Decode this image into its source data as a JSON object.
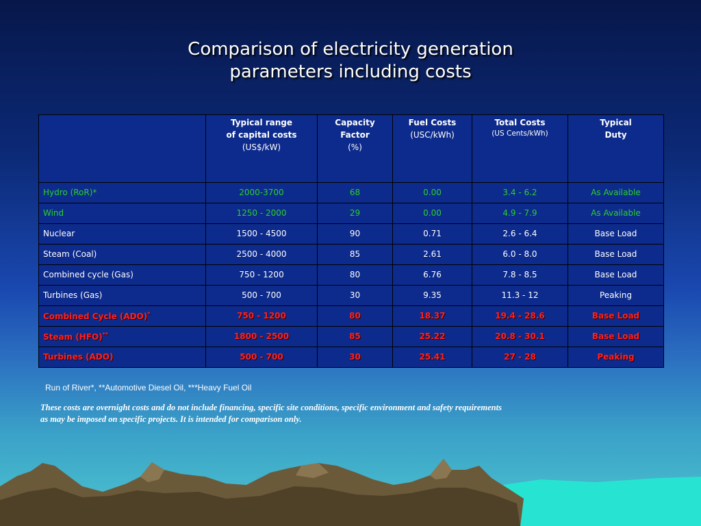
{
  "title": {
    "line1": "Comparison of electricity generation",
    "line2": "parameters including costs"
  },
  "table": {
    "headers": [
      {
        "main": "",
        "sub": ""
      },
      {
        "main": "Typical range\nof capital costs",
        "sub": "(US$/kW)"
      },
      {
        "main": "Capacity\nFactor",
        "sub": "(%)"
      },
      {
        "main": "Fuel Costs",
        "sub": "(USC/kWh)"
      },
      {
        "main": "Total Costs",
        "sub": "(US Cents/kWh)"
      },
      {
        "main": "Typical\nDuty",
        "sub": ""
      }
    ],
    "rows": [
      {
        "style": "green",
        "cells": [
          "Hydro (RoR)*",
          "2000-3700",
          "68",
          "0.00",
          "3.4 - 6.2",
          "As Available"
        ]
      },
      {
        "style": "green",
        "cells": [
          "Wind",
          "1250 - 2000",
          "29",
          "0.00",
          "4.9 - 7.9",
          "As Available"
        ]
      },
      {
        "style": "normal",
        "cells": [
          "Nuclear",
          "1500 - 4500",
          "90",
          "0.71",
          "2.6 - 6.4",
          "Base Load"
        ]
      },
      {
        "style": "normal",
        "cells": [
          "Steam (Coal)",
          "2500 - 4000",
          "85",
          "2.61",
          "6.0 - 8.0",
          "Base Load"
        ]
      },
      {
        "style": "normal",
        "cells": [
          "Combined cycle (Gas)",
          "750 - 1200",
          "80",
          "6.76",
          "7.8 - 8.5",
          "Base Load"
        ]
      },
      {
        "style": "normal",
        "cells": [
          "Turbines (Gas)",
          "500 - 700",
          "30",
          "9.35",
          "11.3 - 12",
          "Peaking"
        ]
      },
      {
        "style": "red",
        "sup": "*",
        "cells": [
          "Combined Cycle (ADO)",
          "750 - 1200",
          "80",
          "18.37",
          "19.4 - 28.6",
          "Base Load"
        ]
      },
      {
        "style": "red",
        "sup": "**",
        "cells": [
          "Steam (HFO)",
          "1800 - 2500",
          "85",
          "25.22",
          "20.8 - 30.1",
          "Base Load"
        ]
      },
      {
        "style": "red",
        "cells": [
          "Turbines (ADO)",
          "500 - 700",
          "30",
          "25.41",
          "27 - 28",
          "Peaking"
        ]
      }
    ]
  },
  "footnote": "Run of River*, **Automotive Diesel Oil, ***Heavy Fuel Oil",
  "note": "These costs are overnight costs and do not include financing, specific site conditions, specific environment and safety requirements as may be imposed on specific projects. It is intended for comparison only.",
  "colors": {
    "cell_bg": "#0d2b8c",
    "green_text": "#2bd02b",
    "red_text": "#ff2020"
  }
}
